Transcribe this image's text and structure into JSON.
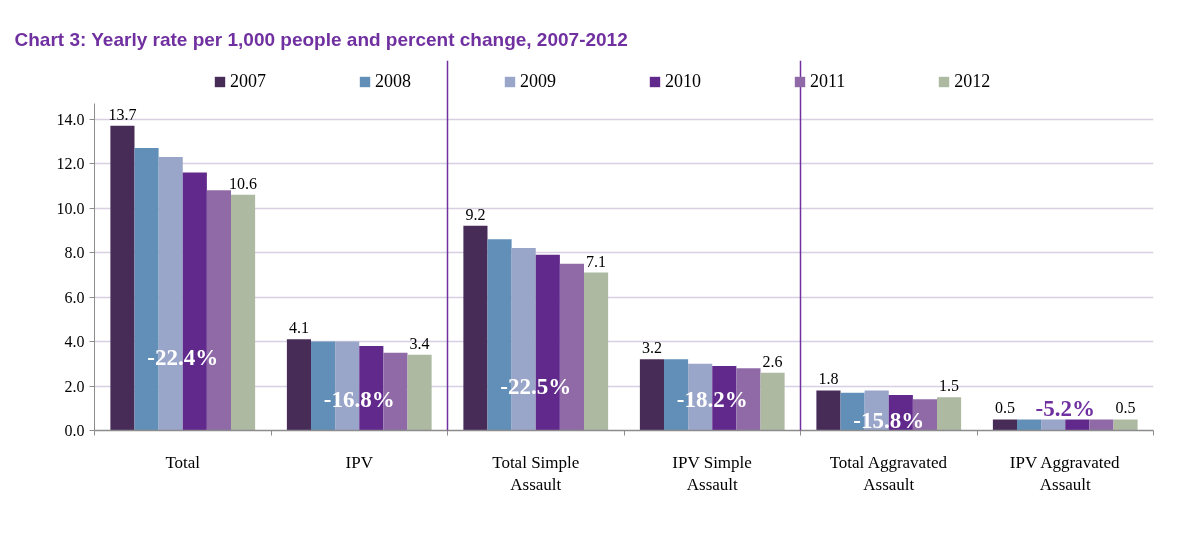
{
  "chart_data": {
    "type": "bar",
    "title": "Chart 3: Yearly rate per 1,000 people and percent change, 2007-2012",
    "categories": [
      "Total",
      "IPV",
      "Total Simple Assault",
      "IPV Simple Assault",
      "Total Aggravated Assault",
      "IPV Aggravated Assault"
    ],
    "series": [
      {
        "name": "2007",
        "color": "#482c58",
        "values": [
          13.7,
          4.1,
          9.2,
          3.2,
          1.8,
          0.5
        ],
        "value_labels": [
          "13.7",
          "4.1",
          "9.2",
          "3.2",
          "1.8",
          "0.5"
        ]
      },
      {
        "name": "2008",
        "color": "#628fb8",
        "values": [
          12.7,
          4.0,
          8.6,
          3.2,
          1.7,
          0.5
        ]
      },
      {
        "name": "2009",
        "color": "#9aa6c9",
        "values": [
          12.3,
          4.0,
          8.2,
          3.0,
          1.8,
          0.5
        ]
      },
      {
        "name": "2010",
        "color": "#62298d",
        "values": [
          11.6,
          3.8,
          7.9,
          2.9,
          1.6,
          0.5
        ]
      },
      {
        "name": "2011",
        "color": "#8f6aa6",
        "values": [
          10.8,
          3.5,
          7.5,
          2.8,
          1.4,
          0.5
        ]
      },
      {
        "name": "2012",
        "color": "#adb9a0",
        "values": [
          10.6,
          3.4,
          7.1,
          2.6,
          1.5,
          0.5
        ],
        "value_labels": [
          "10.6",
          "3.4",
          "7.1",
          "2.6",
          "1.5",
          "0.5"
        ]
      }
    ],
    "ylim": [
      0,
      14.7
    ],
    "yticks": [
      {
        "value": 0,
        "label": "0.0"
      },
      {
        "value": 2,
        "label": "2.0"
      },
      {
        "value": 4,
        "label": "4.0"
      },
      {
        "value": 6,
        "label": "6.0"
      },
      {
        "value": 8,
        "label": "8.0"
      },
      {
        "value": 10,
        "label": "10.0"
      },
      {
        "value": 12,
        "label": "12.0"
      },
      {
        "value": 14,
        "label": "14.0"
      }
    ],
    "grid": "y",
    "legend": "top",
    "annotations": [
      {
        "text": "-22.4%",
        "x": "Total",
        "y": 3.3
      },
      {
        "text": "-16.8%",
        "x": "IPV",
        "y": 1.4
      },
      {
        "text": "-22.5%",
        "x": "Total Simple Assault",
        "y": 2.0
      },
      {
        "text": "-18.2%",
        "x": "IPV Simple Assault",
        "y": 1.4
      },
      {
        "text": "-15.8%",
        "x": "Total Aggravated Assault",
        "y": 0.45
      },
      {
        "text": "-5.2%",
        "x": "IPV Aggravated Assault",
        "y": 0.5
      }
    ]
  }
}
